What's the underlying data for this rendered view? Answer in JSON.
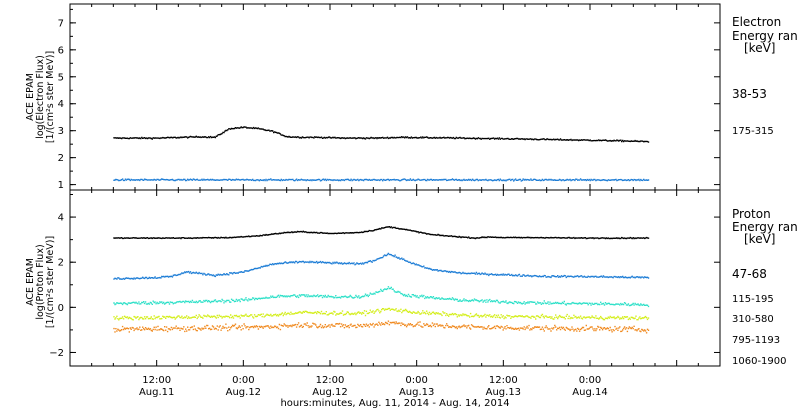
{
  "chart_data": [
    {
      "type": "scatter",
      "ylabel_lines": [
        "ACE EPAM",
        "log(Electron Flux)",
        "[1/(cm²s ster MeV)]"
      ],
      "ylim": [
        0.8,
        7.7
      ],
      "yticks": [
        1,
        2,
        3,
        4,
        5,
        6,
        7
      ],
      "legend": {
        "title_lines": [
          "Electron",
          "Energy ran",
          "[keV]"
        ]
      },
      "series": [
        {
          "name": "38-53",
          "color": "#000000",
          "x": [
            0,
            6,
            12,
            14,
            16,
            18,
            20,
            22,
            24,
            26,
            28,
            32,
            36,
            40,
            48,
            56,
            64,
            70,
            74
          ],
          "y": [
            2.75,
            2.75,
            2.8,
            2.78,
            3.1,
            3.15,
            3.1,
            3.0,
            2.8,
            2.78,
            2.78,
            2.75,
            2.75,
            2.78,
            2.75,
            2.72,
            2.68,
            2.65,
            2.62
          ]
        },
        {
          "name": "175-315",
          "color": "#1f7ed6",
          "x": [
            0,
            74
          ],
          "y": [
            1.2,
            1.2
          ]
        }
      ]
    },
    {
      "type": "scatter",
      "ylabel_lines": [
        "ACE EPAM",
        "log(Proton Flux)",
        "[1/(cm²s ster MeV)]"
      ],
      "ylim": [
        -2.6,
        5.2
      ],
      "yticks": [
        -2,
        0,
        2,
        4
      ],
      "legend": {
        "title_lines": [
          "Proton",
          "Energy ran",
          "[keV]"
        ]
      },
      "series": [
        {
          "name": "47-68",
          "color": "#000000",
          "x": [
            0,
            10,
            16,
            20,
            24,
            26,
            30,
            34,
            36,
            38,
            40,
            44,
            48,
            50,
            52,
            54,
            56,
            60,
            64,
            68,
            74
          ],
          "y": [
            3.1,
            3.1,
            3.12,
            3.2,
            3.35,
            3.38,
            3.3,
            3.35,
            3.45,
            3.6,
            3.5,
            3.25,
            3.15,
            3.1,
            3.15,
            3.12,
            3.12,
            3.12,
            3.1,
            3.1,
            3.1
          ]
        },
        {
          "name": "115-195",
          "color": "#1f7ed6",
          "x": [
            0,
            6,
            8,
            10,
            14,
            18,
            22,
            24,
            26,
            30,
            34,
            36,
            38,
            40,
            42,
            44,
            48,
            52,
            56,
            60,
            64,
            68,
            74
          ],
          "y": [
            1.3,
            1.35,
            1.4,
            1.6,
            1.45,
            1.6,
            1.95,
            2.0,
            2.05,
            2.0,
            1.95,
            2.1,
            2.4,
            2.15,
            1.9,
            1.7,
            1.55,
            1.5,
            1.45,
            1.4,
            1.4,
            1.38,
            1.35
          ]
        },
        {
          "name": "310-580",
          "color": "#2ee0c8",
          "x": [
            0,
            8,
            12,
            18,
            22,
            26,
            30,
            34,
            36,
            38,
            40,
            44,
            48,
            52,
            56,
            60,
            64,
            68,
            74
          ],
          "y": [
            0.2,
            0.25,
            0.28,
            0.35,
            0.5,
            0.55,
            0.5,
            0.5,
            0.65,
            0.9,
            0.6,
            0.45,
            0.35,
            0.3,
            0.25,
            0.22,
            0.2,
            0.18,
            0.15
          ]
        },
        {
          "name": "795-1193",
          "color": "#d4ee1c",
          "x": [
            0,
            10,
            20,
            26,
            34,
            38,
            42,
            50,
            60,
            74
          ],
          "y": [
            -0.45,
            -0.4,
            -0.35,
            -0.2,
            -0.25,
            -0.05,
            -0.2,
            -0.35,
            -0.4,
            -0.45
          ]
        },
        {
          "name": "1060-1900",
          "color": "#f08a20",
          "x": [
            0,
            10,
            20,
            26,
            34,
            38,
            42,
            50,
            60,
            74
          ],
          "y": [
            -0.95,
            -0.9,
            -0.85,
            -0.75,
            -0.8,
            -0.65,
            -0.75,
            -0.85,
            -0.9,
            -0.95
          ]
        }
      ]
    }
  ],
  "time_axis": {
    "xlim": [
      -6,
      84
    ],
    "xlabel": "hours:minutes, Aug. 11, 2014 - Aug. 14, 2014",
    "major_ticks": [
      {
        "hour": 6,
        "time": "12:00",
        "date": "Aug.11"
      },
      {
        "hour": 18,
        "time": "0:00",
        "date": "Aug.12"
      },
      {
        "hour": 30,
        "time": "12:00",
        "date": "Aug.12"
      },
      {
        "hour": 42,
        "time": "0:00",
        "date": "Aug.13"
      },
      {
        "hour": 54,
        "time": "12:00",
        "date": "Aug.13"
      },
      {
        "hour": 66,
        "time": "0:00",
        "date": "Aug.14"
      }
    ]
  }
}
